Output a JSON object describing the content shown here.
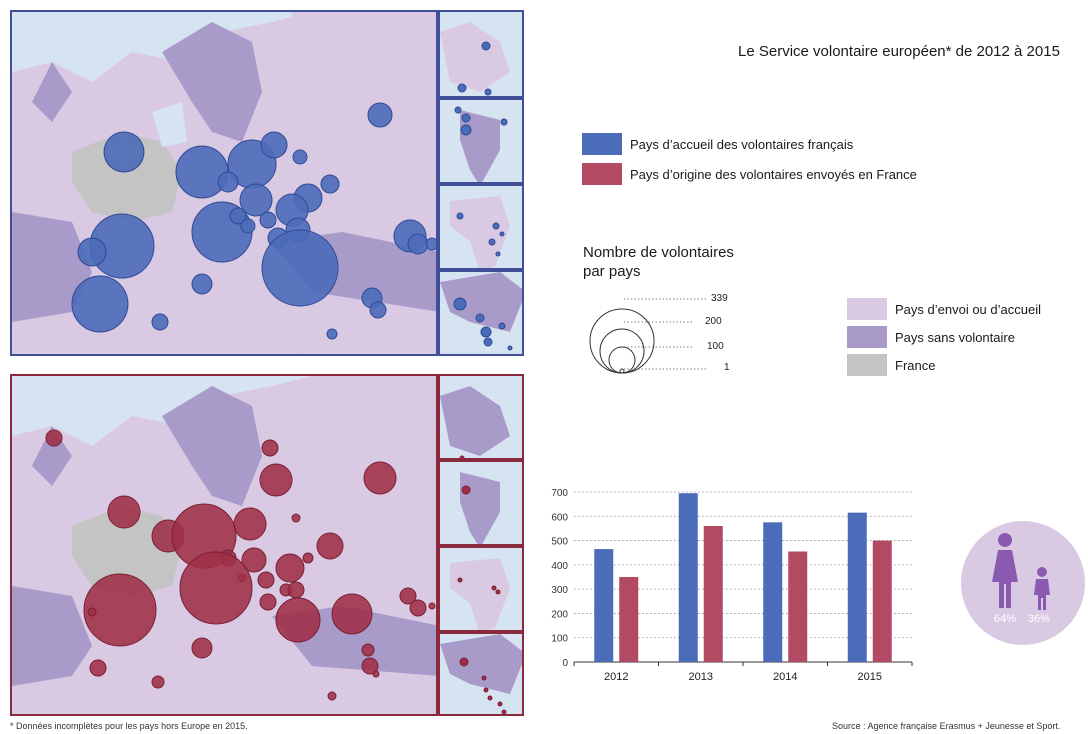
{
  "title": "Le Service volontaire européen* de 2012 à 2015",
  "legend_series": [
    {
      "label": "Pays d’accueil des volontaires français",
      "color": "#4b6cb8"
    },
    {
      "label": "Pays d’origine des volontaires envoyés en France",
      "color": "#b24a63"
    }
  ],
  "size_legend": {
    "heading_line1": "Nombre de volontaires",
    "heading_line2": "par pays",
    "values": [
      "339",
      "200",
      "100",
      "1"
    ]
  },
  "area_legend": [
    {
      "label": "Pays d’envoi ou d’accueil",
      "color": "#d9c9e3"
    },
    {
      "label": "Pays sans volontaire",
      "color": "#a99bc9"
    },
    {
      "label": "France",
      "color": "#c4c4c4"
    }
  ],
  "gender": {
    "female": "64%",
    "male": "36%"
  },
  "chart_data": {
    "type": "bar",
    "categories": [
      "2012",
      "2013",
      "2014",
      "2015"
    ],
    "series": [
      {
        "name": "Pays d’accueil des volontaires français",
        "color": "#4b6cb8",
        "values": [
          465,
          695,
          575,
          615
        ]
      },
      {
        "name": "Pays d’origine des volontaires envoyés en France",
        "color": "#b24a63",
        "values": [
          350,
          560,
          455,
          500
        ]
      }
    ],
    "yticks": [
      "0",
      "100",
      "200",
      "300",
      "400",
      "500",
      "600",
      "700"
    ],
    "ylim": [
      0,
      700
    ],
    "grid": true
  },
  "footnote": "* Données incomplètes pour les pays hors Europe en 2015.",
  "source": "Source : Agence française Erasmus + Jeunesse et Sport."
}
